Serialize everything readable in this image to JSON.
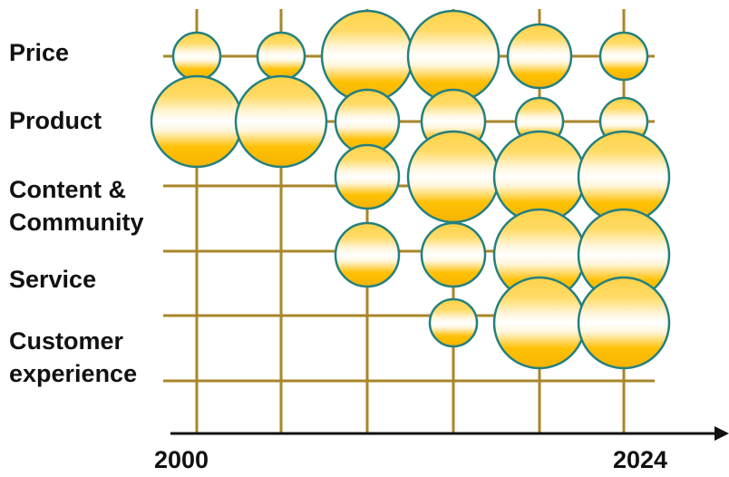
{
  "rows": [
    {
      "label_lines": [
        "Price"
      ]
    },
    {
      "label_lines": [
        "Product"
      ]
    },
    {
      "label_lines": [
        "Content &",
        "Community"
      ]
    },
    {
      "label_lines": [
        "Service"
      ]
    },
    {
      "label_lines": [
        "Customer",
        "experience"
      ]
    }
  ],
  "axis": {
    "start_label": "2000",
    "end_label": "2024"
  },
  "columns_count": 6,
  "bubbles": [
    {
      "row": 0,
      "col": 0,
      "size": 1
    },
    {
      "row": 0,
      "col": 1,
      "size": 1
    },
    {
      "row": 0,
      "col": 2,
      "size": 3
    },
    {
      "row": 0,
      "col": 3,
      "size": 3
    },
    {
      "row": 0,
      "col": 4,
      "size": 2
    },
    {
      "row": 0,
      "col": 5,
      "size": 1
    },
    {
      "row": 1,
      "col": 0,
      "size": 3
    },
    {
      "row": 1,
      "col": 1,
      "size": 3
    },
    {
      "row": 1,
      "col": 2,
      "size": 2
    },
    {
      "row": 1,
      "col": 3,
      "size": 2
    },
    {
      "row": 1,
      "col": 4,
      "size": 1
    },
    {
      "row": 1,
      "col": 5,
      "size": 1
    },
    {
      "row": 2,
      "col": 2,
      "size": 2
    },
    {
      "row": 2,
      "col": 3,
      "size": 3
    },
    {
      "row": 2,
      "col": 4,
      "size": 3
    },
    {
      "row": 2,
      "col": 5,
      "size": 3
    },
    {
      "row": 3,
      "col": 2,
      "size": 2
    },
    {
      "row": 3,
      "col": 3,
      "size": 2
    },
    {
      "row": 3,
      "col": 4,
      "size": 3
    },
    {
      "row": 3,
      "col": 5,
      "size": 3
    },
    {
      "row": 4,
      "col": 3,
      "size": 1
    },
    {
      "row": 4,
      "col": 4,
      "size": 3
    },
    {
      "row": 4,
      "col": 5,
      "size": 3
    }
  ],
  "colors": {
    "grid": "#a8862a",
    "axis": "#111111",
    "bubble_fill_core": "#ffc107",
    "bubble_fill_band": "#fff6dc",
    "bubble_stroke": "#24807f"
  }
}
